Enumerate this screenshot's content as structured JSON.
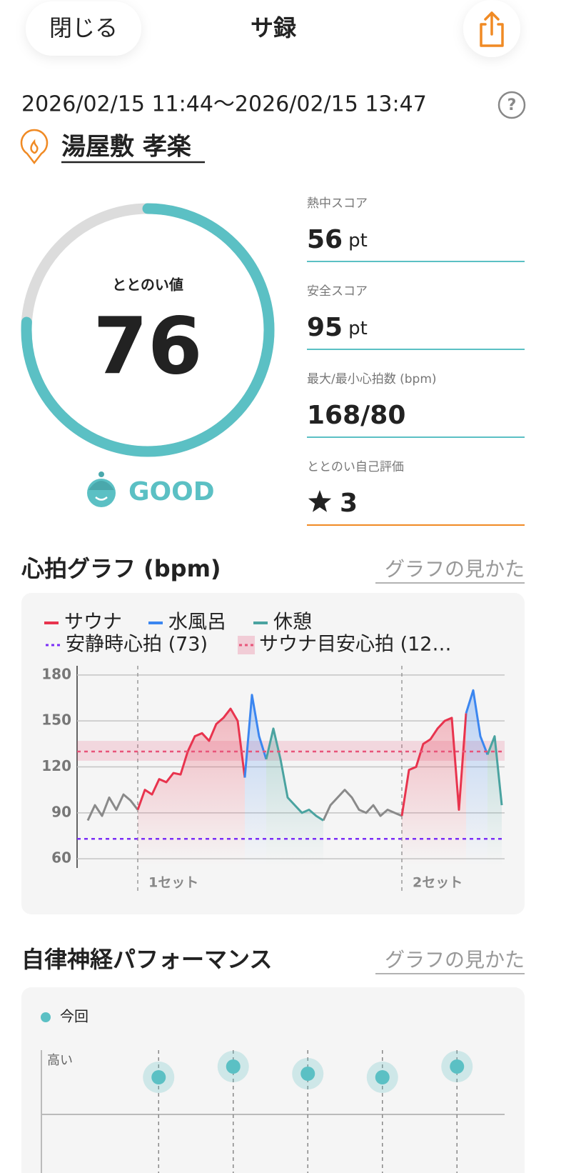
{
  "header": {
    "close": "閉じる",
    "title": "サ録"
  },
  "session": {
    "period": "2026/02/15 11:44〜2026/02/15 13:47",
    "facility": "湯屋敷 孝楽"
  },
  "gauge": {
    "label": "ととのい値",
    "value": 76,
    "range": [
      0,
      100
    ],
    "rating": "GOOD",
    "color": "#5bc0c4"
  },
  "metrics": [
    {
      "label": "熱中スコア",
      "value": 56,
      "unit": "pt"
    },
    {
      "label": "安全スコア",
      "value": 95,
      "unit": "pt"
    },
    {
      "label": "最大/最小心拍数 (bpm)",
      "value": "168/80"
    },
    {
      "label": "ととのい自己評価",
      "value": 3
    }
  ],
  "sections": [
    {
      "title": "心拍グラフ (bpm)",
      "link": "グラフの見かた"
    },
    {
      "title": "自律神経パフォーマンス",
      "link": "グラフの見かた"
    }
  ],
  "chart_data": [
    {
      "type": "line",
      "categories": [
        null,
        null,
        null,
        null,
        null,
        null,
        null,
        null,
        null,
        null,
        null,
        null,
        null,
        null,
        null,
        null,
        null,
        null,
        null,
        null,
        null,
        null,
        null,
        null,
        null,
        null,
        null,
        null,
        null,
        null,
        null,
        null,
        null,
        null,
        null,
        null,
        null,
        null,
        null,
        null,
        null,
        null,
        null,
        null,
        null,
        null,
        null,
        null,
        null,
        null,
        null,
        null,
        null,
        null,
        null,
        null,
        null,
        null,
        null
      ],
      "series": [
        {
          "color": "#8a8a8a",
          "values": [
            85,
            95,
            88,
            100,
            92,
            102,
            98,
            92,
            null,
            null,
            null,
            null,
            null,
            null,
            null,
            null,
            null,
            null,
            null,
            null,
            null,
            null,
            null,
            null,
            null,
            null,
            null,
            null,
            null,
            null,
            null,
            null,
            null,
            85,
            95,
            100,
            105,
            100,
            92,
            90,
            95,
            88,
            92,
            90,
            88,
            null,
            null,
            null,
            null,
            null,
            null,
            null,
            null,
            null,
            null,
            null,
            null,
            null,
            null
          ]
        },
        {
          "name": "サウナ",
          "color": "#e8344e",
          "values": [
            null,
            null,
            null,
            null,
            null,
            null,
            null,
            92,
            105,
            102,
            112,
            110,
            116,
            115,
            130,
            140,
            142,
            137,
            148,
            152,
            158,
            150,
            113,
            null,
            null,
            null,
            null,
            null,
            null,
            null,
            null,
            null,
            null,
            null,
            null,
            null,
            null,
            null,
            null,
            null,
            null,
            null,
            null,
            null,
            88,
            118,
            120,
            135,
            138,
            145,
            150,
            152,
            92,
            155,
            null,
            null,
            null,
            null,
            null
          ]
        },
        {
          "name": "水風呂",
          "color": "#3b86f0",
          "values": [
            null,
            null,
            null,
            null,
            null,
            null,
            null,
            null,
            null,
            null,
            null,
            null,
            null,
            null,
            null,
            null,
            null,
            null,
            null,
            null,
            null,
            null,
            113,
            167,
            140,
            125,
            null,
            null,
            null,
            null,
            null,
            null,
            null,
            null,
            null,
            null,
            null,
            null,
            null,
            null,
            null,
            null,
            null,
            null,
            null,
            null,
            null,
            null,
            null,
            null,
            null,
            null,
            null,
            155,
            170,
            140,
            128,
            null,
            null
          ]
        },
        {
          "name": "休憩",
          "color": "#4aa3a0",
          "values": [
            null,
            null,
            null,
            null,
            null,
            null,
            null,
            null,
            null,
            null,
            null,
            null,
            null,
            null,
            null,
            null,
            null,
            null,
            null,
            null,
            null,
            null,
            null,
            null,
            null,
            125,
            145,
            125,
            100,
            95,
            90,
            92,
            88,
            85,
            null,
            null,
            null,
            null,
            null,
            null,
            null,
            null,
            null,
            null,
            null,
            null,
            null,
            null,
            null,
            null,
            null,
            null,
            null,
            null,
            null,
            null,
            128,
            140,
            95
          ]
        }
      ],
      "reference_lines": [
        {
          "name": "安静時心拍 (73)",
          "value": 73,
          "color": "#7b2ff7"
        },
        {
          "name": "サウナ目安心拍 (12…",
          "value": 130,
          "band": [
            124,
            137
          ],
          "color": "#e8557a"
        }
      ],
      "annotations": [
        {
          "text": "1セット",
          "x": 7
        },
        {
          "text": "2セット",
          "x": 44
        }
      ],
      "ylim": [
        54,
        186
      ],
      "yticks": [
        60,
        90,
        120,
        150,
        180
      ],
      "grid": true
    },
    {
      "type": "scatter",
      "legend": "今回",
      "y_label": "高い",
      "color": "#5bc0c4",
      "categories": [
        null,
        null,
        null,
        null,
        null
      ],
      "values": [
        82,
        88,
        84,
        82,
        88
      ],
      "ylim": [
        0,
        100
      ]
    }
  ]
}
